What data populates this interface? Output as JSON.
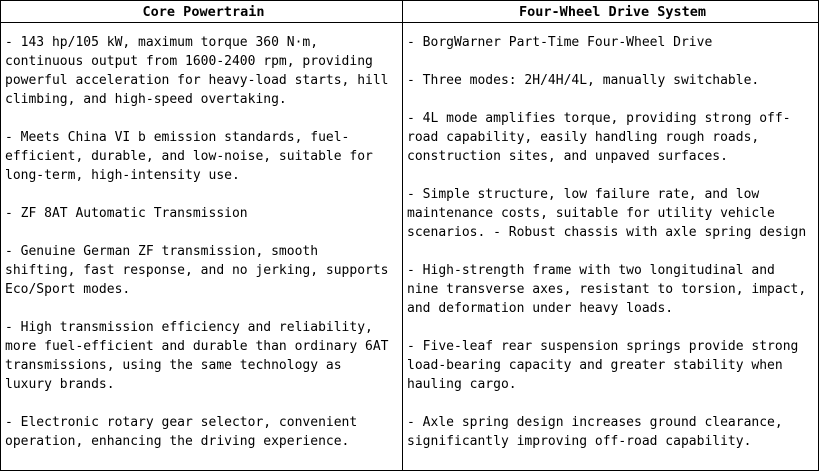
{
  "table": {
    "headers": [
      "Core Powertrain",
      "Four-Wheel Drive System"
    ],
    "left": [
      "- 143 hp/105 kW, maximum torque 360   N·m,\ncontinuous output from 1600-2400 rpm, providing\npowerful acceleration for heavy-load starts, hill\nclimbing, and high-speed overtaking.",
      "- Meets China VI b emission standards, fuel-\nefficient, durable, and low-noise, suitable for\nlong-term, high-intensity use.",
      "- ZF 8AT Automatic Transmission",
      "- Genuine German ZF transmission, smooth\nshifting, fast response, and no jerking, supports\nEco/Sport modes.",
      "- High transmission efficiency and reliability,\nmore fuel-efficient and durable than ordinary 6AT\ntransmissions, using the same technology as\nluxury brands.",
      "- Electronic rotary gear selector, convenient\noperation, enhancing the driving experience."
    ],
    "right": [
      "- BorgWarner Part-Time Four-Wheel Drive",
      "- Three modes: 2H/4H/4L, manually switchable.",
      "- 4L mode amplifies torque, providing strong off-\nroad capability, easily handling rough roads,\nconstruction sites, and unpaved surfaces.",
      "- Simple structure, low failure rate, and low\nmaintenance costs, suitable for utility vehicle\nscenarios. - Robust chassis with axle spring design",
      "- High-strength frame with two longitudinal and\nnine transverse axes, resistant to torsion, impact,\nand deformation under heavy loads.",
      "- Five-leaf rear suspension springs provide strong\nload-bearing capacity and greater stability when\nhauling cargo.",
      "- Axle spring design increases ground clearance,\nsignificantly improving off-road capability."
    ]
  }
}
